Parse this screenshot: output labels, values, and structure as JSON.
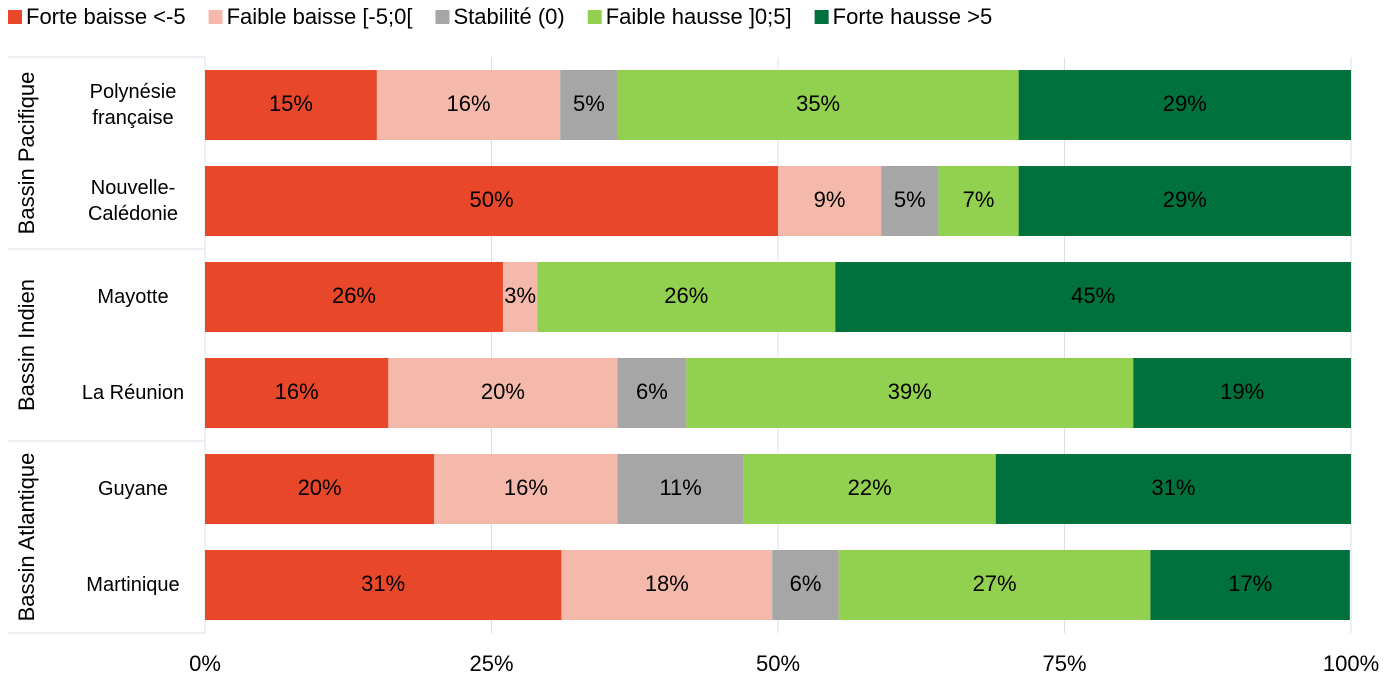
{
  "chart_data": {
    "type": "stacked-bar-horizontal",
    "groups": [
      "Bassin Pacifique",
      "Bassin Indien",
      "Bassin Atlantique"
    ],
    "categories": [
      "Polynésie\nfrançaise",
      "Nouvelle-\nCalédonie",
      "Mayotte",
      "La Réunion",
      "Guyane",
      "Martinique"
    ],
    "series": [
      {
        "name": "Forte baisse <-5",
        "color": "#e8472a",
        "values": [
          15,
          50,
          26,
          16,
          20,
          31.1
        ],
        "value_labels": [
          "15%",
          "50%",
          "26%",
          "16%",
          "20%",
          "31%"
        ]
      },
      {
        "name": "Faible baisse [-5;0[",
        "color": "#f5b9ab",
        "values": [
          16,
          9,
          3,
          20,
          16,
          18.4
        ],
        "value_labels": [
          "16%",
          "9%",
          "3%",
          "20%",
          "16%",
          "18%"
        ]
      },
      {
        "name": "Stabilité (0)",
        "color": "#a6a6a6",
        "values": [
          5,
          5,
          null,
          6,
          11,
          5.8
        ],
        "value_labels": [
          "5%",
          "5%",
          null,
          "6%",
          "11%",
          "6%"
        ]
      },
      {
        "name": "Faible hausse ]0;5]",
        "color": "#92d050",
        "values": [
          35,
          7,
          26,
          39,
          22,
          27.2
        ],
        "value_labels": [
          "35%",
          "7%",
          "26%",
          "39%",
          "22%",
          "27%"
        ]
      },
      {
        "name": "Forte hausse >5",
        "color": "#00703c",
        "values": [
          29,
          29,
          45,
          19,
          31,
          17.4
        ],
        "value_labels": [
          "29%",
          "29%",
          "45%",
          "19%",
          "31%",
          "17%"
        ]
      }
    ],
    "xlim": [
      0,
      100
    ],
    "xticks": [
      {
        "value": 0,
        "label": "0%"
      },
      {
        "value": 25,
        "label": "25%"
      },
      {
        "value": 50,
        "label": "50%"
      },
      {
        "value": 75,
        "label": "75%"
      },
      {
        "value": 100,
        "label": "100%"
      }
    ],
    "grid": true,
    "legend": "top"
  }
}
